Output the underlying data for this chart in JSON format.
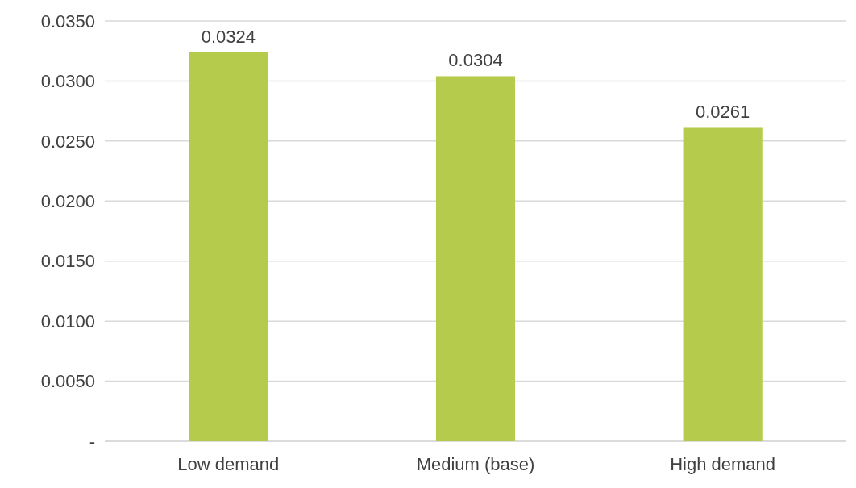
{
  "chart_data": {
    "type": "bar",
    "categories": [
      "Low demand",
      "Medium (base)",
      "High demand"
    ],
    "values": [
      0.0324,
      0.0304,
      0.0261
    ],
    "color": "#b5cb4c",
    "ylim": [
      0,
      0.035
    ],
    "yticks": [
      {
        "value": 0,
        "label": "-"
      },
      {
        "value": 0.005,
        "label": "0.0050"
      },
      {
        "value": 0.01,
        "label": "0.0100"
      },
      {
        "value": 0.015,
        "label": "0.0150"
      },
      {
        "value": 0.02,
        "label": "0.0200"
      },
      {
        "value": 0.025,
        "label": "0.0250"
      },
      {
        "value": 0.03,
        "label": "0.0300"
      },
      {
        "value": 0.035,
        "label": "0.0350"
      }
    ],
    "grid": "y",
    "data_labels": true
  }
}
